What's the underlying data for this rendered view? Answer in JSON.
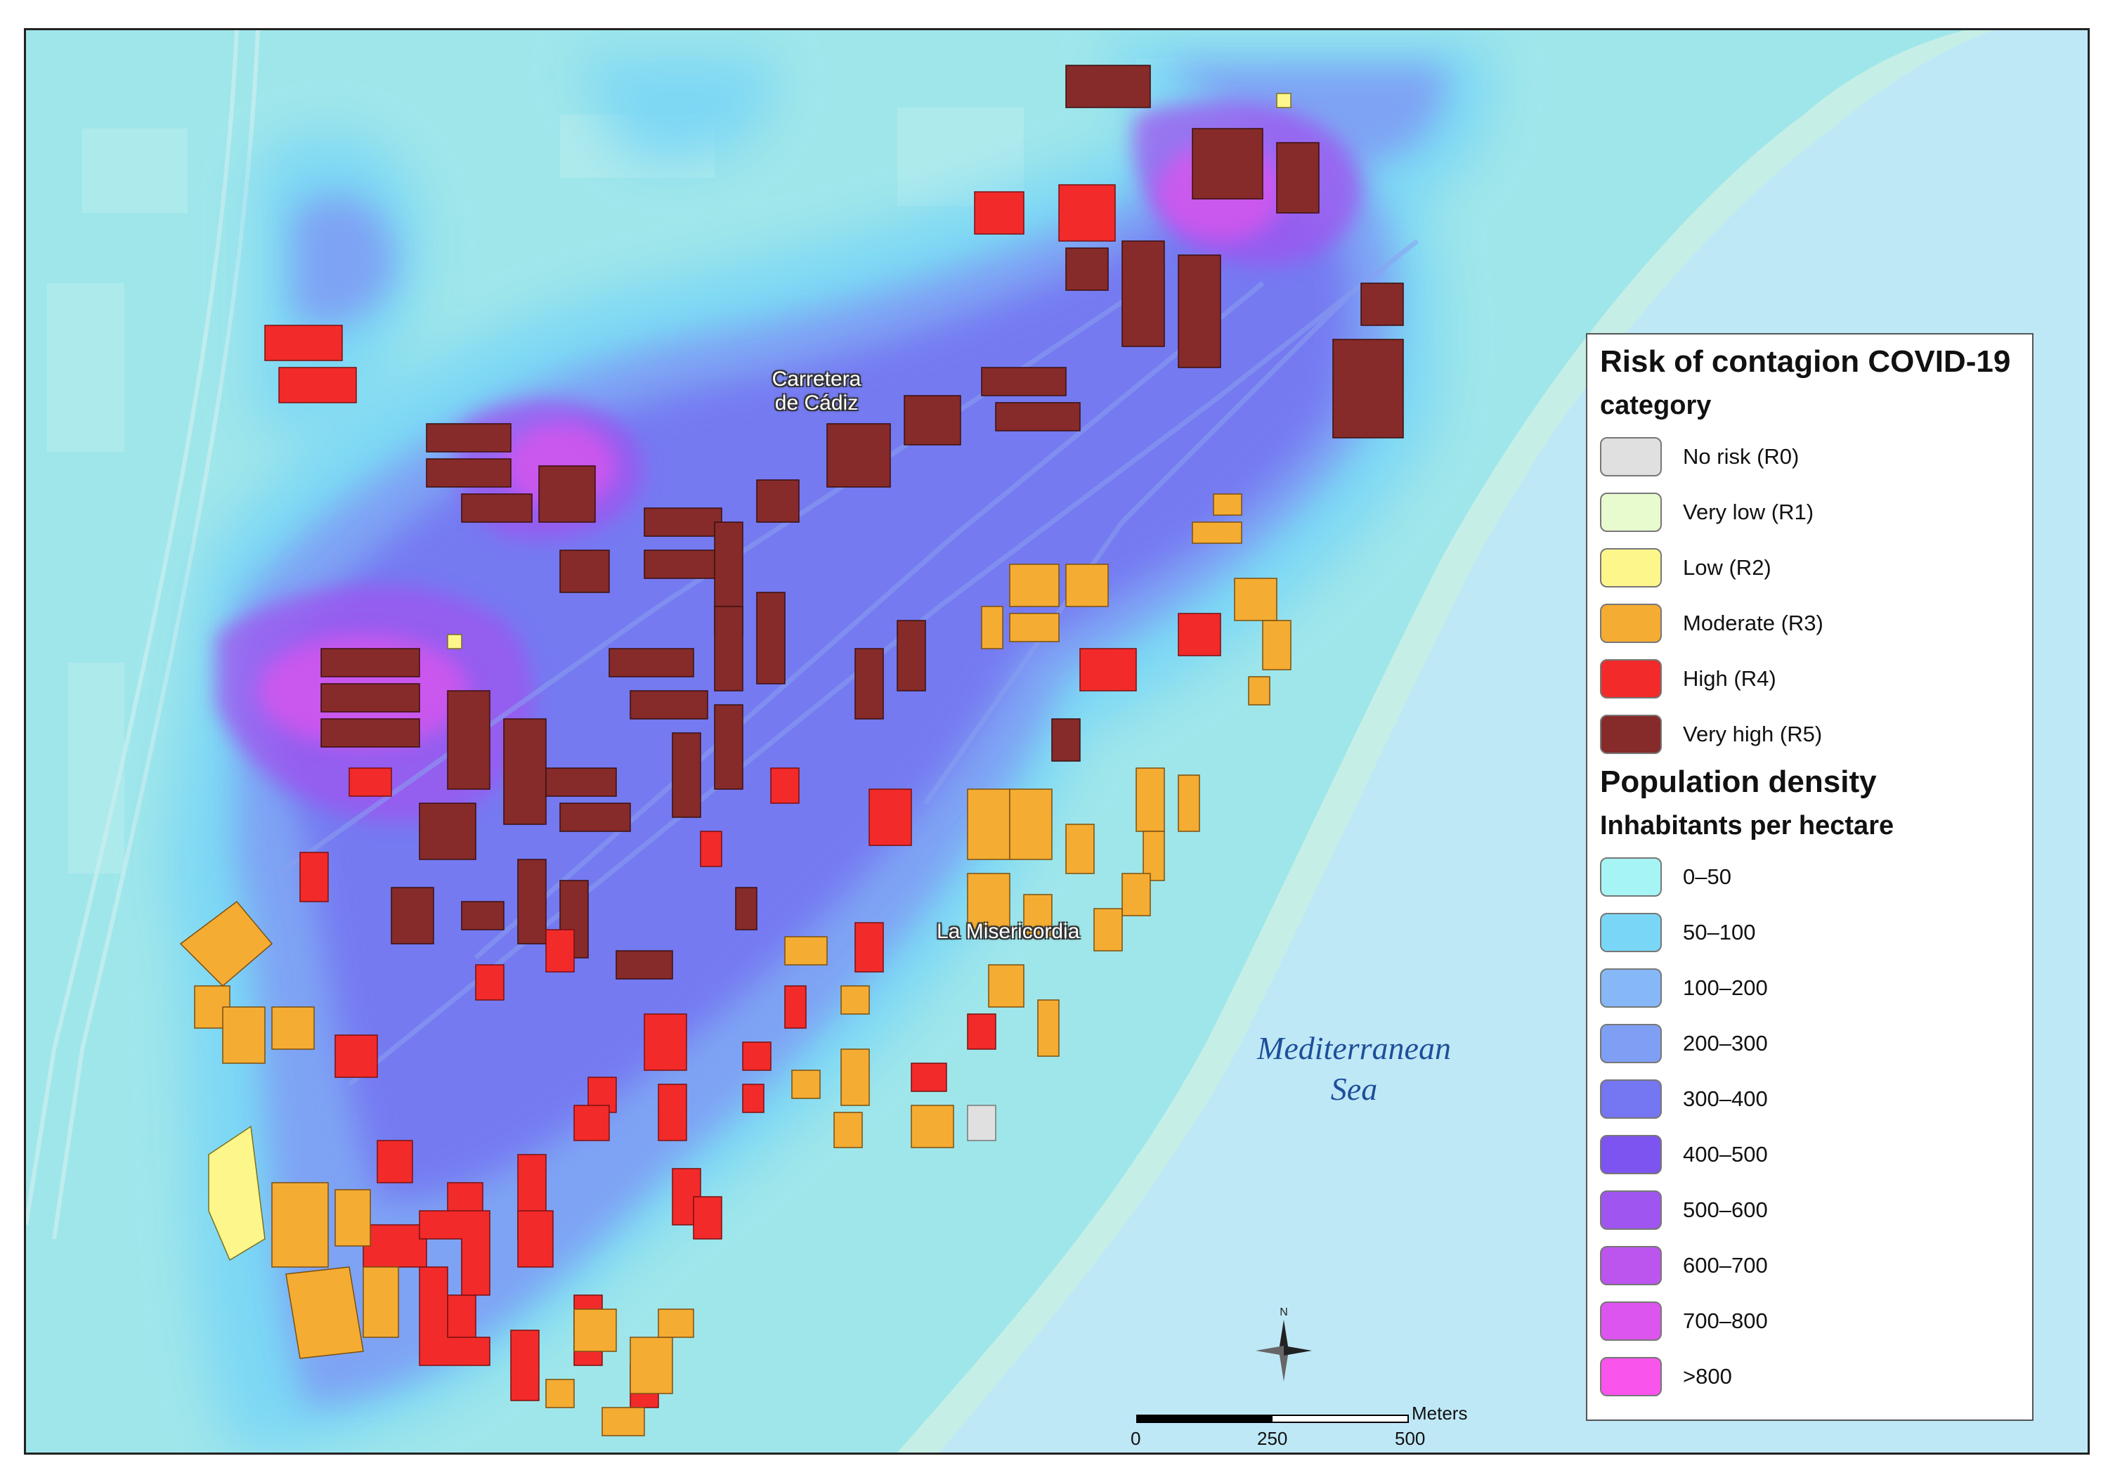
{
  "map": {
    "place_labels": {
      "carretera_line1": "Carretera",
      "carretera_line2": "de Cádiz",
      "misericordia": "La Misericordia",
      "sea_line1": "Mediterranean",
      "sea_line2": "Sea"
    },
    "colors": {
      "sea": "#bfe8f7",
      "beach": "#c5efe6",
      "base_land": "#9fe6ea",
      "risk": {
        "R0": "#e0e0e0",
        "R1": "#e8fbcf",
        "R2": "#fdf68a",
        "R3": "#f5ac32",
        "R4": "#f22a2a",
        "R5": "#862a2a"
      },
      "density": [
        "#a7f4f4",
        "#79d6f6",
        "#86b8f7",
        "#7f9ff4",
        "#7576f1",
        "#7d54ef",
        "#9f55ef",
        "#bb55ee",
        "#dc55ee",
        "#f954ec"
      ]
    }
  },
  "legend": {
    "title": "Risk of contagion COVID-19",
    "risk_heading": "category",
    "risk_items": [
      {
        "label": "No risk (R0)",
        "color": "#e0e0e0"
      },
      {
        "label": "Very low (R1)",
        "color": "#e8fbcf"
      },
      {
        "label": "Low (R2)",
        "color": "#fdf68a"
      },
      {
        "label": "Moderate (R3)",
        "color": "#f5ac32"
      },
      {
        "label": "High (R4)",
        "color": "#f22a2a"
      },
      {
        "label": "Very high (R5)",
        "color": "#862a2a"
      }
    ],
    "density_title": "Population density",
    "density_heading": "Inhabitants per hectare",
    "density_items": [
      {
        "label": "0–50",
        "color": "#a7f4f4"
      },
      {
        "label": "50–100",
        "color": "#79d6f6"
      },
      {
        "label": "100–200",
        "color": "#86b8f7"
      },
      {
        "label": "200–300",
        "color": "#7f9ff4"
      },
      {
        "label": "300–400",
        "color": "#7576f1"
      },
      {
        "label": "400–500",
        "color": "#7d54ef"
      },
      {
        "label": "500–600",
        "color": "#9f55ef"
      },
      {
        "label": "600–700",
        "color": "#bb55ee"
      },
      {
        "label": "700–800",
        "color": "#dc55ee"
      },
      {
        "label": ">800",
        "color": "#f954ec"
      }
    ]
  },
  "north_arrow": {
    "label": "N",
    "icon": "compass-north-arrow-icon"
  },
  "scale_bar": {
    "units": "Meters",
    "ticks": [
      "0",
      "250",
      "500"
    ]
  }
}
